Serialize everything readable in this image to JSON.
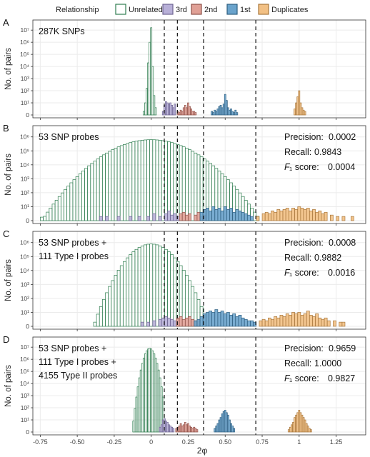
{
  "legend": {
    "title": "Relationship",
    "items": [
      {
        "label": "Unrelated",
        "fill": "#ffffff",
        "stroke": "#2e7d4f"
      },
      {
        "label": "3rd",
        "fill": "#b8b0d8",
        "stroke": "#6d6391"
      },
      {
        "label": "2nd",
        "fill": "#e0a096",
        "stroke": "#8e5048"
      },
      {
        "label": "1st",
        "fill": "#6aa3cc",
        "stroke": "#2f5f80"
      },
      {
        "label": "Duplicates",
        "fill": "#f2c084",
        "stroke": "#a8773c"
      }
    ]
  },
  "chart_data": {
    "type": "histogram",
    "xlabel": "2φ",
    "ylabel": "No. of pairs",
    "x_ticks": [
      "-0.75",
      "-0.50",
      "-0.25",
      "0",
      "0.25",
      "0.50",
      "0.75",
      "1",
      "1.25"
    ],
    "x_tick_values": [
      -0.75,
      -0.5,
      -0.25,
      0,
      0.25,
      0.5,
      0.75,
      1,
      1.25
    ],
    "xlim": [
      -0.8,
      1.45
    ],
    "y_scale": "log10 (pseudo)",
    "thresholds": [
      0.0884,
      0.177,
      0.354,
      0.707
    ],
    "panels": [
      {
        "letter": "A",
        "label_lines": [
          "287K SNPs"
        ],
        "metrics": [],
        "y_ticks": [
          "10⁷",
          "10⁶",
          "10⁵",
          "10⁴",
          "10³",
          "10²",
          "10¹",
          "0"
        ],
        "y_tick_exp": [
          7,
          6,
          5,
          4,
          3,
          2,
          1,
          0
        ],
        "ymax_exp": 7.6,
        "series": [
          {
            "name": "Unrelated",
            "centers": [
              -0.05,
              -0.04,
              -0.03,
              -0.02,
              -0.01,
              0.0,
              0.01,
              0.02,
              0.03
            ],
            "exps": [
              0.3,
              1.0,
              2.2,
              4.3,
              6.0,
              7.2,
              4.0,
              1.6,
              0.6
            ]
          },
          {
            "name": "3rd",
            "centers": [
              0.08,
              0.09,
              0.1,
              0.11,
              0.12,
              0.13,
              0.14,
              0.15,
              0.16
            ],
            "exps": [
              0.3,
              0.8,
              1.1,
              1.0,
              0.9,
              1.0,
              0.8,
              0.6,
              0.9
            ]
          },
          {
            "name": "2nd",
            "centers": [
              0.18,
              0.19,
              0.2,
              0.21,
              0.22,
              0.23,
              0.24,
              0.25,
              0.26,
              0.27,
              0.28,
              0.29,
              0.3
            ],
            "exps": [
              0.3,
              0.2,
              0.4,
              0.3,
              0.6,
              0.8,
              0.6,
              1.0,
              0.7,
              0.5,
              0.3,
              0.3,
              0.2
            ]
          },
          {
            "name": "1st",
            "centers": [
              0.41,
              0.42,
              0.43,
              0.44,
              0.45,
              0.46,
              0.47,
              0.48,
              0.49,
              0.5,
              0.51,
              0.52,
              0.53,
              0.54,
              0.55,
              0.56,
              0.57,
              0.58
            ],
            "exps": [
              0.3,
              0.2,
              0.4,
              0.3,
              0.5,
              0.7,
              0.8,
              0.6,
              0.9,
              1.7,
              1.2,
              0.6,
              0.4,
              0.5,
              0.3,
              0.2,
              0.4,
              0.2
            ]
          },
          {
            "name": "Duplicates",
            "centers": [
              0.97,
              0.98,
              0.99,
              1.0,
              1.01,
              1.02,
              1.03,
              1.04
            ],
            "exps": [
              0.5,
              1.0,
              1.5,
              2.0,
              1.0,
              0.6,
              0.4,
              0.3
            ]
          }
        ]
      },
      {
        "letter": "B",
        "label_lines": [
          "53 SNP probes"
        ],
        "metrics": [
          {
            "prefix": "Precision: ",
            "value": "0.0002",
            "italic_F": false
          },
          {
            "prefix": "Recall: ",
            "value": "0.9843",
            "italic_F": false
          },
          {
            "prefix": "₁ score: ",
            "value": "0.0004",
            "italic_F": true
          }
        ],
        "y_ticks": [
          "10⁶",
          "10⁵",
          "10⁴",
          "10³",
          "10²",
          "10¹",
          "0"
        ],
        "y_tick_exp": [
          6,
          5,
          4,
          3,
          2,
          1,
          0
        ],
        "ymax_exp": 6.6,
        "series": [
          {
            "name": "Unrelated",
            "model": "parabola",
            "x_from": -0.74,
            "x_to": 0.72,
            "step": 0.02,
            "peak": 5.8,
            "center": 0.0,
            "width": 0.74
          },
          {
            "name": "3rd",
            "centers": [
              -0.34,
              -0.3,
              -0.22,
              -0.14,
              -0.08,
              -0.02,
              0.02,
              0.06,
              0.1,
              0.12,
              0.14,
              0.16,
              0.18
            ],
            "exps": [
              0.3,
              0.3,
              0.3,
              0.3,
              0.3,
              0.3,
              0.5,
              0.3,
              0.5,
              0.7,
              0.4,
              0.5,
              0.3
            ]
          },
          {
            "name": "2nd",
            "centers": [
              0.2,
              0.22,
              0.24,
              0.26,
              0.3,
              0.32,
              0.34,
              0.36
            ],
            "exps": [
              0.5,
              0.6,
              0.4,
              0.5,
              0.4,
              0.6,
              0.3,
              0.4
            ]
          },
          {
            "name": "1st",
            "centers": [
              0.34,
              0.36,
              0.38,
              0.4,
              0.42,
              0.44,
              0.46,
              0.48,
              0.5,
              0.52,
              0.54,
              0.56,
              0.58,
              0.6,
              0.62,
              0.64,
              0.66,
              0.68
            ],
            "exps": [
              0.6,
              0.8,
              0.9,
              0.7,
              1.0,
              0.8,
              0.9,
              0.7,
              1.0,
              0.8,
              0.9,
              0.6,
              0.8,
              0.7,
              0.6,
              0.5,
              0.4,
              0.3
            ]
          },
          {
            "name": "Duplicates",
            "centers": [
              0.72,
              0.76,
              0.78,
              0.8,
              0.82,
              0.84,
              0.86,
              0.88,
              0.9,
              0.92,
              0.94,
              0.96,
              0.98,
              1.0,
              1.02,
              1.04,
              1.06,
              1.08,
              1.1,
              1.12,
              1.14,
              1.16,
              1.18,
              1.22,
              1.26,
              1.3,
              1.36
            ],
            "exps": [
              0.3,
              0.5,
              0.6,
              0.5,
              0.7,
              0.6,
              0.8,
              0.7,
              0.8,
              0.9,
              0.7,
              0.9,
              0.8,
              1.0,
              0.9,
              0.8,
              0.9,
              0.7,
              0.8,
              0.6,
              0.7,
              0.5,
              0.6,
              0.4,
              0.3,
              0.3,
              0.3
            ]
          }
        ]
      },
      {
        "letter": "C",
        "label_lines": [
          "53 SNP probes +",
          "111 Type I probes"
        ],
        "metrics": [
          {
            "prefix": "Precision: ",
            "value": "0.0008",
            "italic_F": false
          },
          {
            "prefix": "Recall: ",
            "value": "0.9882",
            "italic_F": false
          },
          {
            "prefix": "₁ score: ",
            "value": "0.0016",
            "italic_F": true
          }
        ],
        "y_ticks": [
          "10⁶",
          "10⁵",
          "10⁴",
          "10³",
          "10²",
          "10¹",
          "0"
        ],
        "y_tick_exp": [
          6,
          5,
          4,
          3,
          2,
          1,
          0
        ],
        "ymax_exp": 6.6,
        "series": [
          {
            "name": "Unrelated",
            "model": "parabola",
            "x_from": -0.38,
            "x_to": 0.36,
            "step": 0.02,
            "peak": 5.9,
            "center": 0.0,
            "width": 0.39
          },
          {
            "name": "3rd",
            "centers": [
              -0.06,
              -0.02,
              0.02,
              0.06,
              0.08,
              0.1,
              0.12,
              0.14,
              0.16
            ],
            "exps": [
              0.3,
              0.3,
              0.4,
              0.5,
              0.6,
              0.7,
              0.6,
              0.5,
              0.4
            ]
          },
          {
            "name": "2nd",
            "centers": [
              0.18,
              0.2,
              0.22,
              0.24,
              0.26,
              0.28,
              0.3,
              0.32
            ],
            "exps": [
              0.6,
              0.7,
              0.5,
              0.6,
              0.7,
              0.5,
              0.4,
              0.4
            ]
          },
          {
            "name": "1st",
            "centers": [
              0.3,
              0.32,
              0.34,
              0.36,
              0.38,
              0.4,
              0.42,
              0.44,
              0.46,
              0.48,
              0.5,
              0.52,
              0.54,
              0.56,
              0.58,
              0.6,
              0.62,
              0.64,
              0.66,
              0.68,
              0.7
            ],
            "exps": [
              0.4,
              0.5,
              0.7,
              0.9,
              1.0,
              1.1,
              1.0,
              1.2,
              1.0,
              1.1,
              0.9,
              1.0,
              0.8,
              0.9,
              0.7,
              0.8,
              0.6,
              0.5,
              0.4,
              0.4,
              0.3
            ]
          },
          {
            "name": "Duplicates",
            "centers": [
              0.74,
              0.76,
              0.78,
              0.8,
              0.82,
              0.84,
              0.86,
              0.88,
              0.9,
              0.92,
              0.94,
              0.96,
              0.98,
              1.0,
              1.02,
              1.04,
              1.06,
              1.08,
              1.1,
              1.12,
              1.14,
              1.16,
              1.18,
              1.2,
              1.24,
              1.28,
              1.3
            ],
            "exps": [
              0.4,
              0.5,
              0.4,
              0.6,
              0.5,
              0.7,
              0.6,
              0.8,
              0.7,
              0.9,
              0.8,
              1.0,
              0.9,
              1.0,
              0.8,
              0.9,
              1.1,
              0.8,
              0.7,
              0.9,
              0.6,
              0.5,
              0.6,
              0.4,
              0.4,
              0.3,
              0.3
            ]
          }
        ]
      },
      {
        "letter": "D",
        "label_lines": [
          "53 SNP probes +",
          "111 Type I probes +",
          "4155 Type II probes"
        ],
        "metrics": [
          {
            "prefix": "Precision: ",
            "value": "0.9659",
            "italic_F": false
          },
          {
            "prefix": "Recall: ",
            "value": "1.0000",
            "italic_F": false
          },
          {
            "prefix": "₁ score: ",
            "value": "0.9827",
            "italic_F": true
          }
        ],
        "y_ticks": [
          "10⁷",
          "10⁶",
          "10⁵",
          "10⁴",
          "10³",
          "10²",
          "10¹",
          "0"
        ],
        "y_tick_exp": [
          7,
          6,
          5,
          4,
          3,
          2,
          1,
          0
        ],
        "ymax_exp": 7.6,
        "series": [
          {
            "name": "Unrelated",
            "model": "parabola",
            "x_from": -0.12,
            "x_to": 0.08,
            "step": 0.01,
            "peak": 6.9,
            "center": -0.01,
            "width": 0.118
          },
          {
            "name": "3rd",
            "centers": [
              0.06,
              0.07,
              0.08,
              0.09,
              0.1,
              0.11,
              0.12,
              0.13,
              0.14,
              0.15
            ],
            "exps": [
              0.4,
              0.6,
              1.0,
              1.1,
              0.9,
              0.8,
              0.6,
              0.5,
              0.4,
              0.3
            ]
          },
          {
            "name": "2nd",
            "centers": [
              0.17,
              0.18,
              0.19,
              0.2,
              0.21,
              0.22,
              0.23,
              0.24,
              0.25,
              0.26,
              0.27,
              0.28,
              0.29,
              0.3,
              0.31
            ],
            "exps": [
              0.3,
              0.4,
              0.5,
              0.7,
              0.5,
              0.6,
              0.8,
              0.6,
              0.7,
              0.5,
              0.4,
              0.3,
              0.4,
              0.3,
              0.2
            ]
          },
          {
            "name": "1st",
            "centers": [
              0.43,
              0.44,
              0.45,
              0.46,
              0.47,
              0.48,
              0.49,
              0.5,
              0.51,
              0.52,
              0.53,
              0.54,
              0.55,
              0.56
            ],
            "exps": [
              0.3,
              0.5,
              0.7,
              1.0,
              1.2,
              1.5,
              1.7,
              1.8,
              1.6,
              1.4,
              1.0,
              0.7,
              0.5,
              0.3
            ]
          },
          {
            "name": "Duplicates",
            "centers": [
              0.93,
              0.94,
              0.95,
              0.96,
              0.97,
              0.98,
              0.99,
              1.0,
              1.01,
              1.02,
              1.03,
              1.04,
              1.05,
              1.06,
              1.07,
              1.08
            ],
            "exps": [
              0.2,
              0.4,
              0.6,
              0.8,
              1.2,
              1.4,
              1.6,
              1.8,
              1.6,
              1.4,
              1.2,
              1.0,
              0.7,
              0.5,
              0.3,
              0.2
            ]
          }
        ]
      }
    ]
  }
}
